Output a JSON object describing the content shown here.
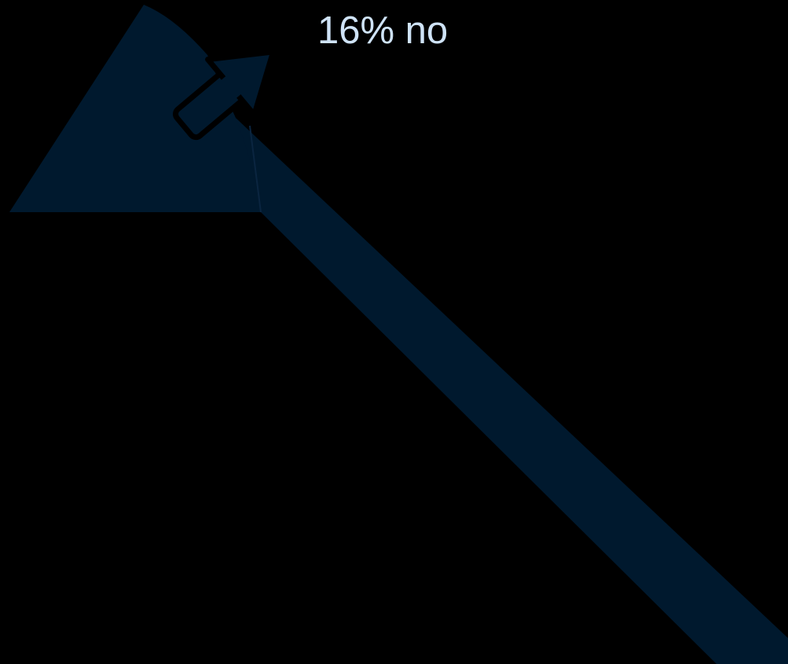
{
  "caption": {
    "text": "16% no"
  },
  "graphic": {
    "description_icon": "pull-out-arrow-icon",
    "colors": {
      "background": "#000000",
      "shape_fill": "#00192e",
      "shape_edge": "#0a2540",
      "arrow_outline": "#000000",
      "caption_text": "#cfe3f7"
    }
  }
}
